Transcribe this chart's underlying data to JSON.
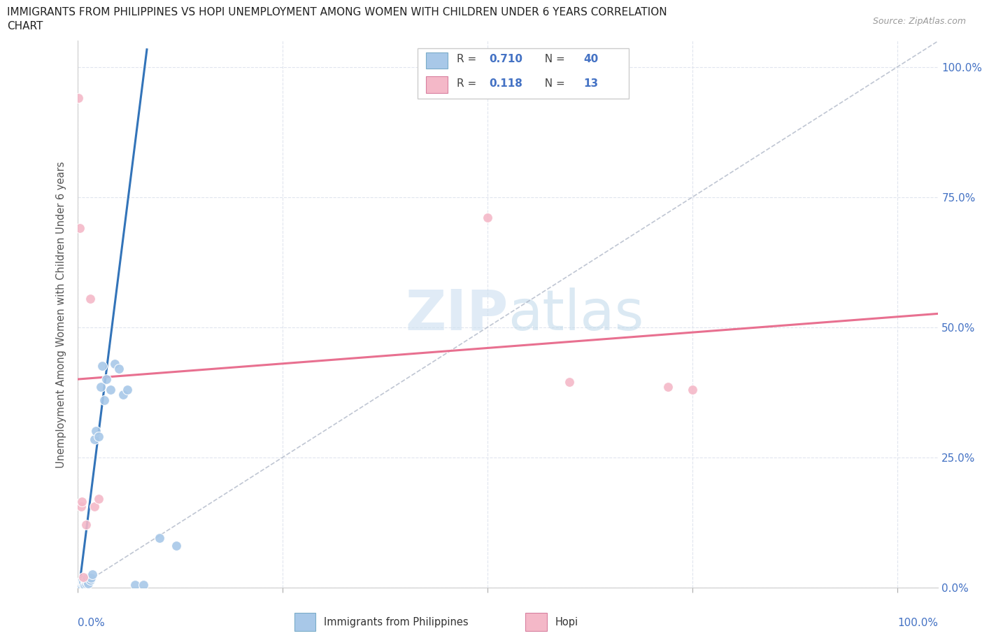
{
  "title_line1": "IMMIGRANTS FROM PHILIPPINES VS HOPI UNEMPLOYMENT AMONG WOMEN WITH CHILDREN UNDER 6 YEARS CORRELATION",
  "title_line2": "CHART",
  "source": "Source: ZipAtlas.com",
  "ylabel": "Unemployment Among Women with Children Under 6 years",
  "watermark": "ZIPatlas",
  "legend_label1": "Immigrants from Philippines",
  "legend_label2": "Hopi",
  "r1": "0.710",
  "n1": "40",
  "r2": "0.118",
  "n2": "13",
  "blue_color": "#a8c8e8",
  "pink_color": "#f4b8c8",
  "blue_line_color": "#3374b9",
  "pink_line_color": "#e87090",
  "dashed_line_color": "#b0b8c8",
  "grid_color": "#e0e5ee",
  "axis_label_color": "#4472c4",
  "blue_scatter_x": [
    0.001,
    0.002,
    0.002,
    0.003,
    0.003,
    0.004,
    0.004,
    0.005,
    0.005,
    0.006,
    0.006,
    0.007,
    0.007,
    0.008,
    0.009,
    0.01,
    0.01,
    0.011,
    0.012,
    0.013,
    0.014,
    0.015,
    0.016,
    0.018,
    0.02,
    0.022,
    0.025,
    0.028,
    0.03,
    0.032,
    0.035,
    0.04,
    0.045,
    0.05,
    0.055,
    0.06,
    0.07,
    0.08,
    0.1,
    0.12
  ],
  "blue_scatter_y": [
    0.005,
    0.003,
    0.008,
    0.004,
    0.01,
    0.005,
    0.012,
    0.007,
    0.003,
    0.008,
    0.015,
    0.006,
    0.01,
    0.005,
    0.012,
    0.008,
    0.015,
    0.012,
    0.018,
    0.008,
    0.02,
    0.015,
    0.018,
    0.025,
    0.285,
    0.3,
    0.29,
    0.385,
    0.425,
    0.36,
    0.4,
    0.38,
    0.43,
    0.42,
    0.37,
    0.38,
    0.005,
    0.005,
    0.095,
    0.08
  ],
  "pink_scatter_x": [
    0.001,
    0.002,
    0.004,
    0.005,
    0.007,
    0.01,
    0.015,
    0.02,
    0.025,
    0.5,
    0.6,
    0.72,
    0.75
  ],
  "pink_scatter_y": [
    0.94,
    0.69,
    0.155,
    0.165,
    0.02,
    0.12,
    0.555,
    0.155,
    0.17,
    0.71,
    0.395,
    0.385,
    0.38
  ],
  "ylim": [
    0,
    1.05
  ],
  "xlim": [
    0,
    1.05
  ],
  "yticks": [
    0.0,
    0.25,
    0.5,
    0.75,
    1.0
  ],
  "ytick_labels": [
    "0.0%",
    "25.0%",
    "50.0%",
    "75.0%",
    "100.0%"
  ],
  "xticks": [
    0.0,
    0.25,
    0.5,
    0.75,
    1.0
  ]
}
